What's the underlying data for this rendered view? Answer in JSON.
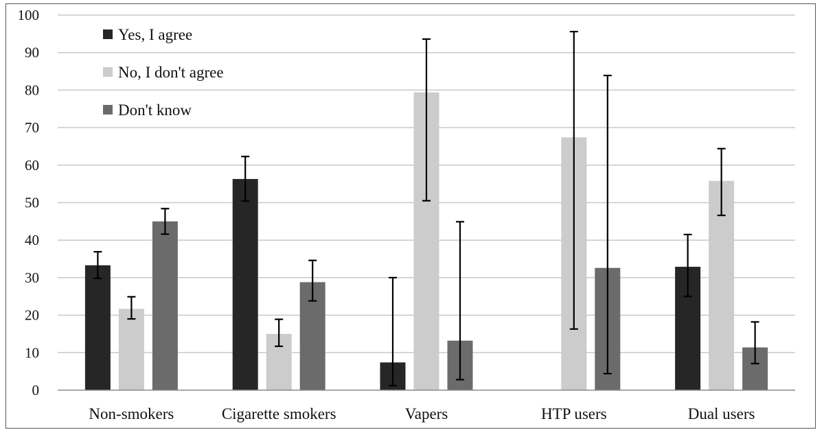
{
  "chart_data": {
    "type": "bar",
    "title": "",
    "xlabel": "",
    "ylabel": "",
    "ylim": [
      0,
      100
    ],
    "yticks": [
      0,
      10,
      20,
      30,
      40,
      50,
      60,
      70,
      80,
      90,
      100
    ],
    "categories": [
      "Non-smokers",
      "Cigarette smokers",
      "Vapers",
      "HTP users",
      "Dual users"
    ],
    "grid": true,
    "legend_position": "top-left",
    "error_bars": true,
    "series": [
      {
        "name": "Yes, I agree",
        "color": "#262626",
        "values": [
          33.3,
          56.3,
          7.4,
          0,
          32.9
        ],
        "error_low": [
          29.8,
          50.4,
          1.2,
          0,
          25.0
        ],
        "error_high": [
          36.9,
          62.3,
          30.0,
          0,
          41.5
        ]
      },
      {
        "name": "No, I don't agree",
        "color": "#cccccc",
        "values": [
          21.7,
          15.0,
          79.4,
          67.4,
          55.8
        ],
        "error_low": [
          19.0,
          11.7,
          50.5,
          16.3,
          46.6
        ],
        "error_high": [
          24.9,
          18.9,
          93.6,
          95.6,
          64.4
        ]
      },
      {
        "name": "Don't know",
        "color": "#6b6b6b",
        "values": [
          45.0,
          28.8,
          13.2,
          32.6,
          11.4
        ],
        "error_low": [
          41.6,
          23.8,
          2.8,
          4.4,
          7.1
        ],
        "error_high": [
          48.4,
          34.6,
          44.9,
          83.9,
          18.2
        ]
      }
    ]
  }
}
